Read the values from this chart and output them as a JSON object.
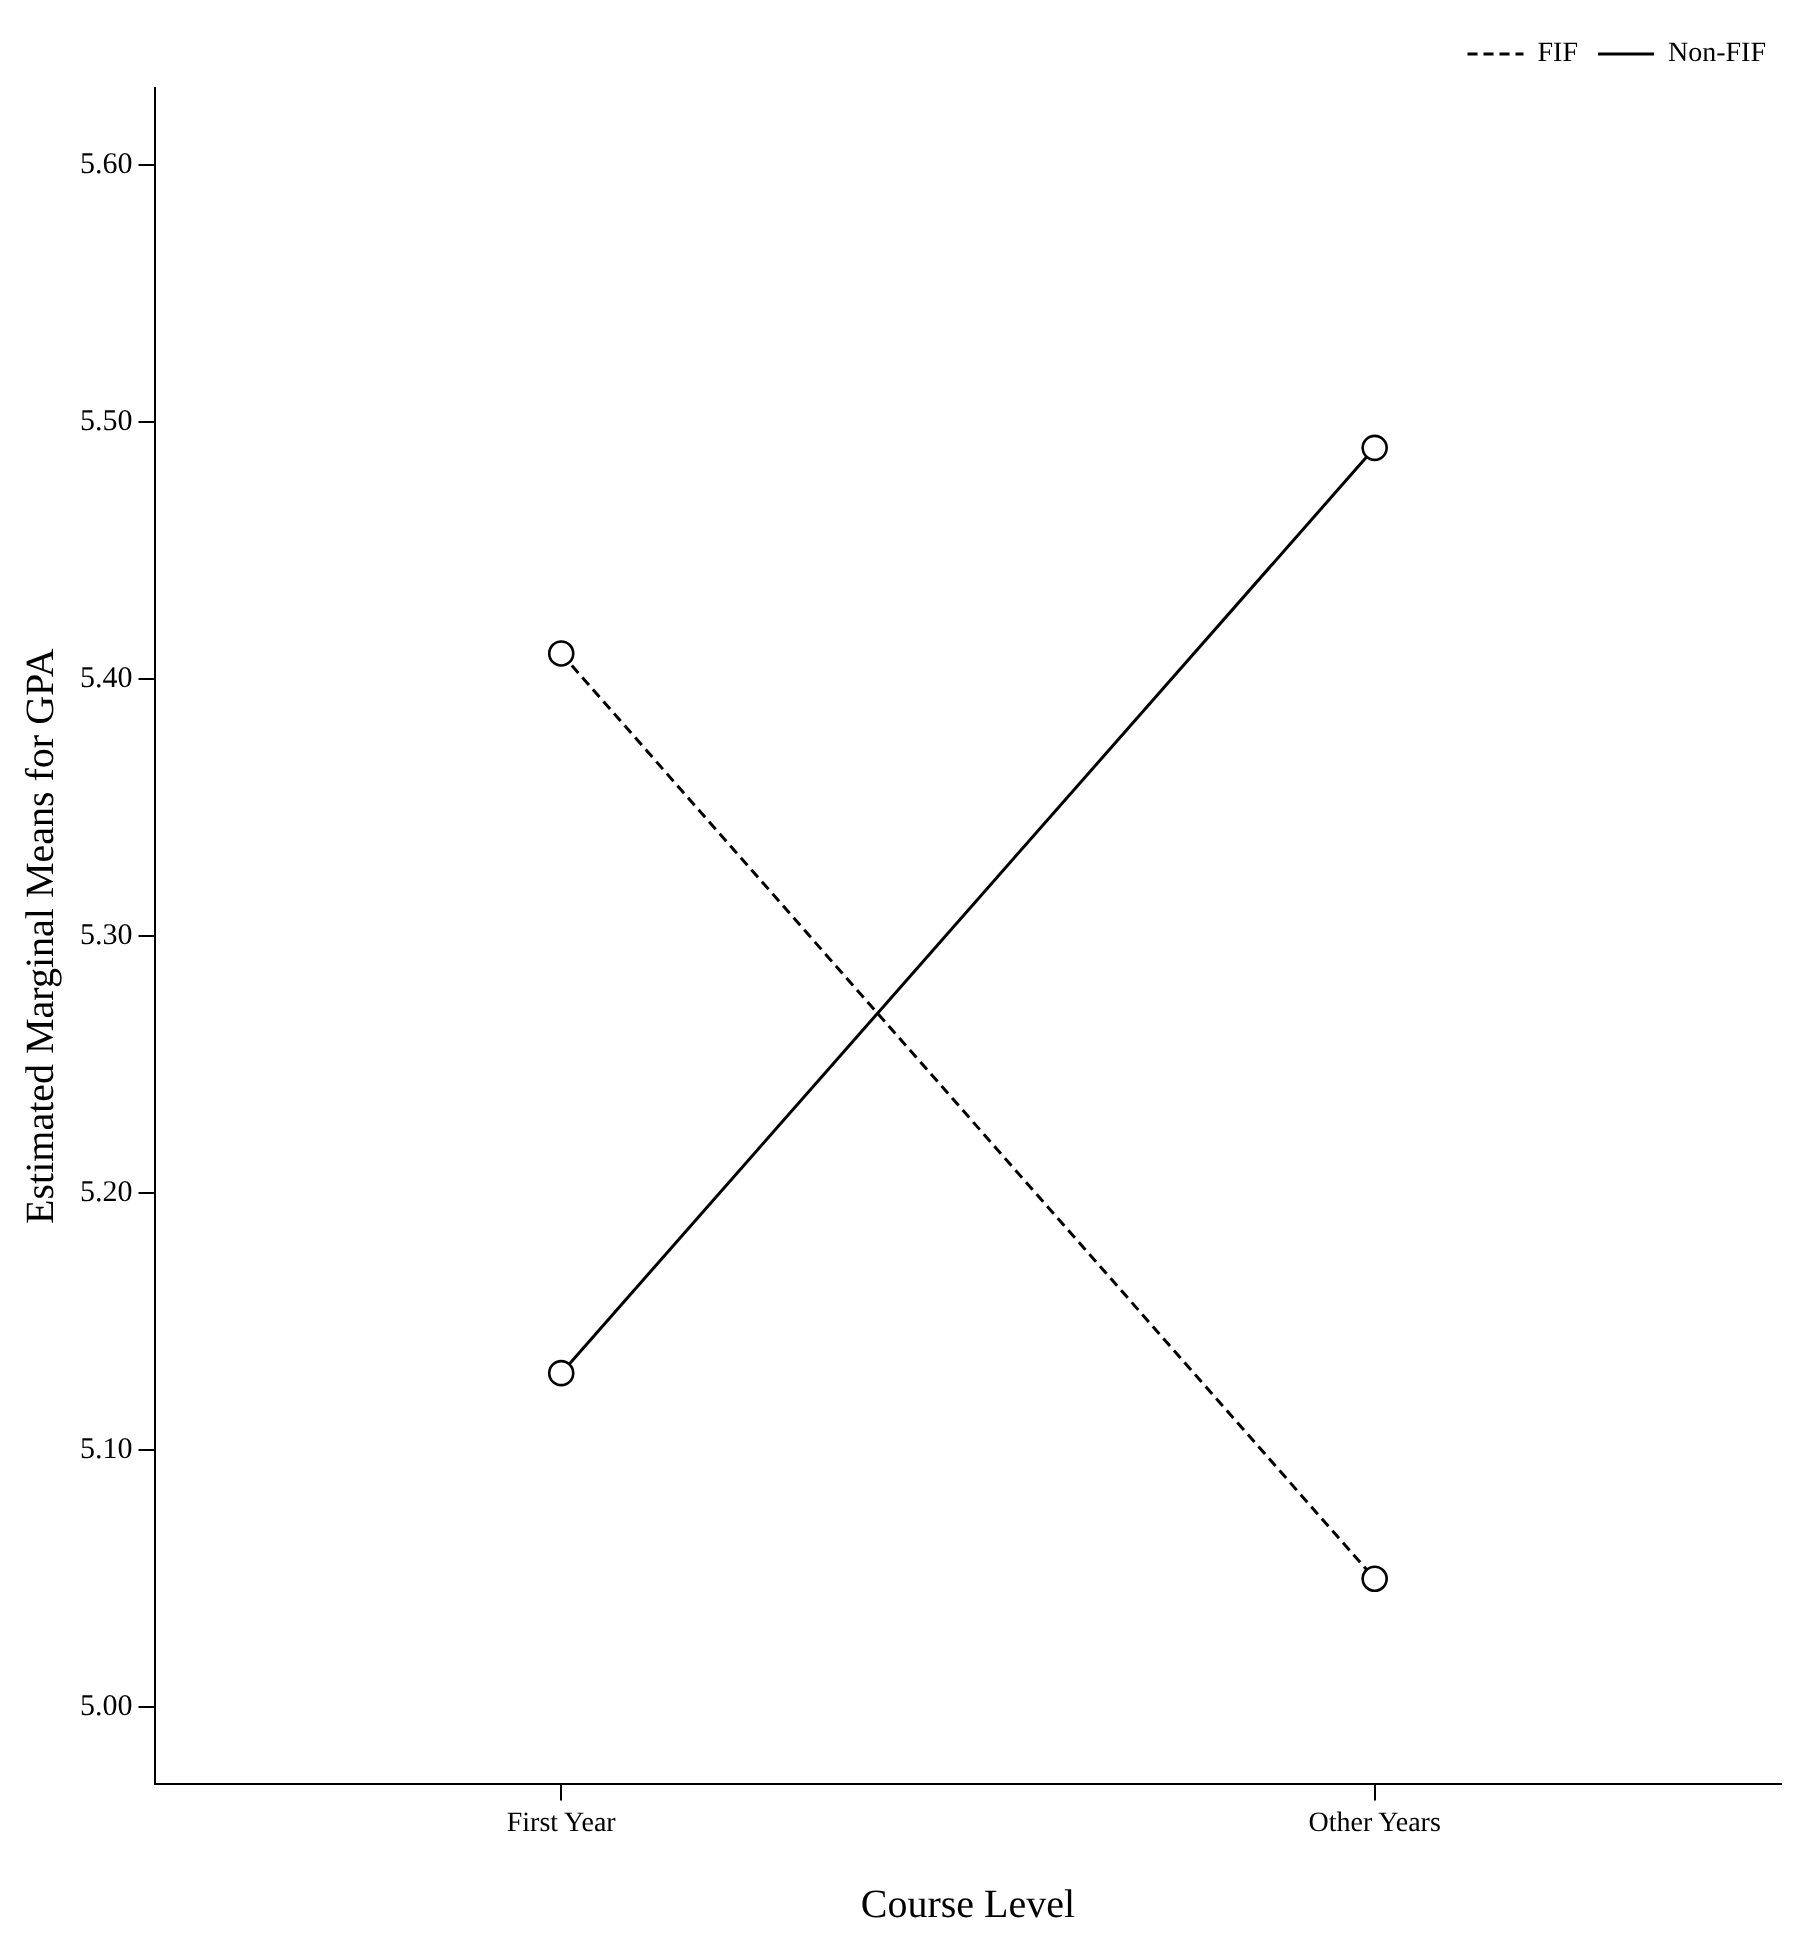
{
  "chart_data": {
    "type": "line",
    "xlabel": "Course Level",
    "ylabel": "Estimated Marginal Means for GPA",
    "categories": [
      "First Year",
      "Other Years"
    ],
    "series": [
      {
        "name": "FIF",
        "color": "#000000",
        "values": [
          5.41,
          5.05
        ],
        "line_style": "dashed"
      },
      {
        "name": "Non-FIF",
        "color": "#000000",
        "values": [
          5.13,
          5.49
        ],
        "line_style": "solid"
      }
    ],
    "ylim": [
      4.97,
      5.63
    ],
    "yticks": [
      {
        "value": 5.0,
        "label": "5.00"
      },
      {
        "value": 5.1,
        "label": "5.10"
      },
      {
        "value": 5.2,
        "label": "5.20"
      },
      {
        "value": 5.3,
        "label": "5.30"
      },
      {
        "value": 5.4,
        "label": "5.40"
      },
      {
        "value": 5.5,
        "label": "5.50"
      },
      {
        "value": 5.6,
        "label": "5.60"
      }
    ],
    "grid": false,
    "legend": "top right",
    "marker": "circle"
  }
}
